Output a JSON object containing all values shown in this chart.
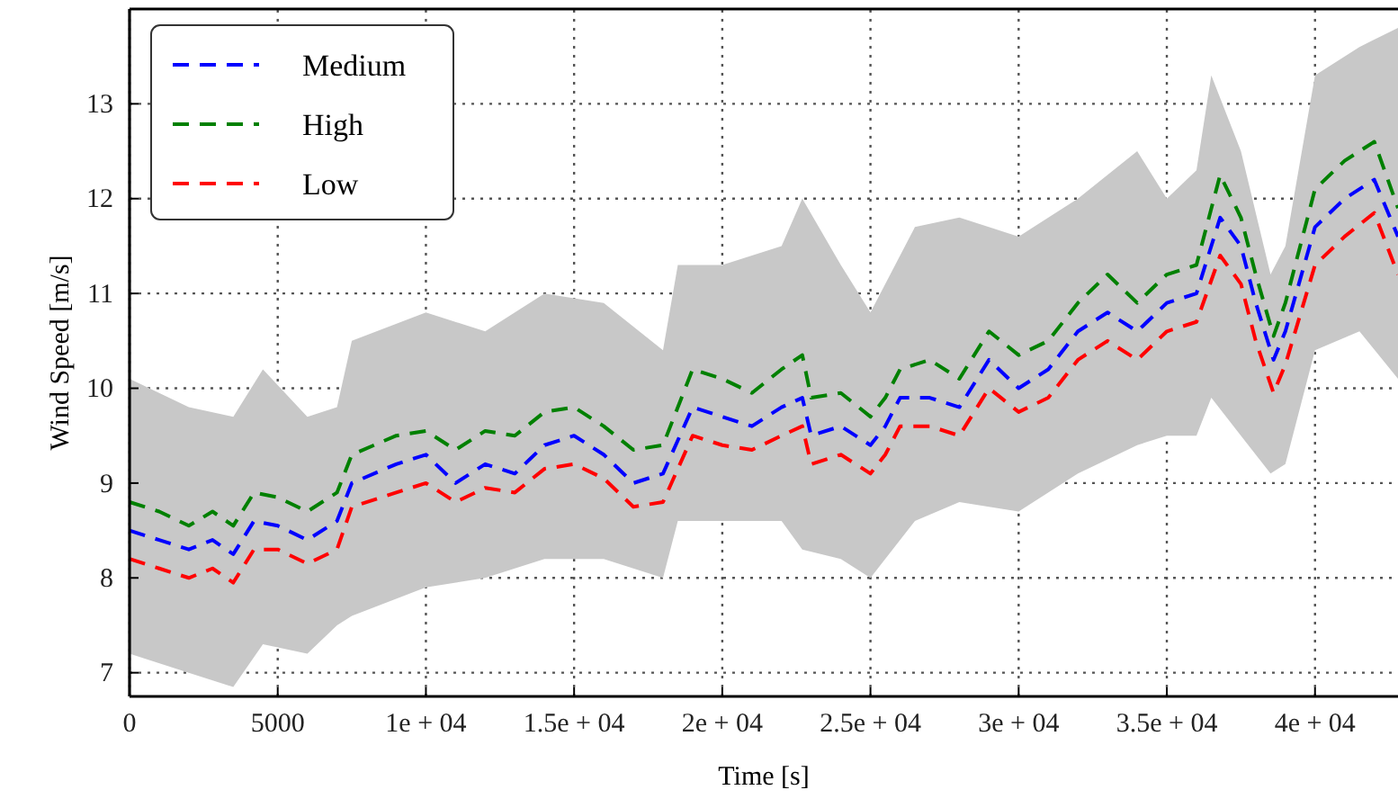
{
  "chart_data": {
    "type": "line",
    "xlabel": "Time [s]",
    "ylabel": "Wind Speed [m/s]",
    "x": [
      0,
      1000,
      2000,
      2800,
      3500,
      4200,
      5000,
      6000,
      7000,
      7500,
      9000,
      10000,
      11000,
      12000,
      13000,
      14000,
      15000,
      16000,
      17000,
      18000,
      19000,
      20000,
      21000,
      22000,
      22700,
      23000,
      24000,
      25000,
      25500,
      26000,
      27000,
      28000,
      29000,
      30000,
      31000,
      32000,
      33000,
      34000,
      35000,
      36000,
      36800,
      37500,
      38000,
      38600,
      39000,
      40000,
      41000,
      42000,
      42800
    ],
    "series": [
      {
        "name": "Medium",
        "color": "#0000ff",
        "values": [
          8.5,
          8.4,
          8.3,
          8.4,
          8.25,
          8.6,
          8.55,
          8.4,
          8.6,
          9.0,
          9.2,
          9.3,
          9.0,
          9.2,
          9.1,
          9.4,
          9.5,
          9.3,
          9.0,
          9.1,
          9.8,
          9.7,
          9.6,
          9.8,
          9.9,
          9.5,
          9.6,
          9.4,
          9.6,
          9.9,
          9.9,
          9.8,
          10.3,
          10.0,
          10.2,
          10.6,
          10.8,
          10.6,
          10.9,
          11.0,
          11.8,
          11.5,
          10.9,
          10.3,
          10.6,
          11.7,
          12.0,
          12.2,
          11.6
        ]
      },
      {
        "name": "High",
        "color": "#008000",
        "values": [
          8.8,
          8.7,
          8.55,
          8.7,
          8.55,
          8.9,
          8.85,
          8.7,
          8.9,
          9.3,
          9.5,
          9.55,
          9.35,
          9.55,
          9.5,
          9.75,
          9.8,
          9.6,
          9.35,
          9.4,
          10.2,
          10.1,
          9.95,
          10.2,
          10.35,
          9.9,
          9.95,
          9.7,
          9.9,
          10.2,
          10.3,
          10.1,
          10.6,
          10.35,
          10.5,
          10.9,
          11.2,
          10.9,
          11.2,
          11.3,
          12.25,
          11.8,
          11.2,
          10.55,
          10.9,
          12.1,
          12.4,
          12.6,
          11.9
        ]
      },
      {
        "name": "Low",
        "color": "#ff0000",
        "values": [
          8.2,
          8.1,
          8.0,
          8.1,
          7.95,
          8.3,
          8.3,
          8.15,
          8.3,
          8.75,
          8.9,
          9.0,
          8.8,
          8.95,
          8.9,
          9.15,
          9.2,
          9.05,
          8.75,
          8.8,
          9.5,
          9.4,
          9.35,
          9.5,
          9.6,
          9.2,
          9.3,
          9.1,
          9.3,
          9.6,
          9.6,
          9.5,
          10.0,
          9.75,
          9.9,
          10.3,
          10.5,
          10.3,
          10.6,
          10.7,
          11.4,
          11.1,
          10.5,
          9.95,
          10.25,
          11.3,
          11.6,
          11.85,
          11.2
        ]
      },
      {
        "color": "#c8c8c8",
        "x": [
          0,
          2000,
          3500,
          4500,
          6000,
          7000,
          7500,
          10000,
          12000,
          14000,
          16000,
          18000,
          18500,
          20000,
          22000,
          22700,
          24000,
          25000,
          26500,
          28000,
          30000,
          32000,
          34000,
          35000,
          36000,
          36500,
          37500,
          38500,
          39000,
          40000,
          41500,
          42800
        ],
        "values": [
          null,
          null,
          null,
          null,
          null,
          null,
          null,
          null,
          null,
          null,
          null,
          null,
          null,
          null,
          null,
          null,
          null,
          null,
          null,
          null,
          null,
          null,
          null,
          null,
          null,
          null,
          null,
          null,
          null,
          null,
          null,
          null
        ],
        "lower": [
          7.2,
          7.0,
          6.85,
          7.3,
          7.2,
          7.5,
          7.6,
          7.9,
          8.0,
          8.2,
          8.2,
          8.0,
          8.6,
          8.6,
          8.6,
          8.3,
          8.2,
          8.0,
          8.6,
          8.8,
          8.7,
          9.1,
          9.4,
          9.5,
          9.5,
          9.9,
          9.5,
          9.1,
          9.2,
          10.4,
          10.6,
          10.1
        ],
        "upper": [
          10.1,
          9.8,
          9.7,
          10.2,
          9.7,
          9.8,
          10.5,
          10.8,
          10.6,
          11.0,
          10.9,
          10.4,
          11.3,
          11.3,
          11.5,
          12.0,
          11.3,
          10.8,
          11.7,
          11.8,
          11.6,
          12.0,
          12.5,
          12.0,
          12.3,
          13.3,
          12.5,
          11.2,
          11.5,
          13.3,
          13.6,
          13.8
        ]
      }
    ],
    "xlim": [
      0,
      42800
    ],
    "ylim": [
      6.75,
      14
    ],
    "xticks": [
      0,
      5000,
      {
        "value": 10000,
        "label": "1e + 04"
      },
      {
        "value": 15000,
        "label": "1.5e + 04"
      },
      {
        "value": 20000,
        "label": "2e + 04"
      },
      {
        "value": 25000,
        "label": "2.5e + 04"
      },
      {
        "value": 30000,
        "label": "3e + 04"
      },
      {
        "value": 35000,
        "label": "3.5e + 04"
      },
      {
        "value": 40000,
        "label": "4e + 04"
      }
    ],
    "yticks": [
      7,
      8,
      9,
      10,
      11,
      12,
      13
    ],
    "grid": true,
    "legend": "top left",
    "line_style": "dashed",
    "marker": "none"
  }
}
